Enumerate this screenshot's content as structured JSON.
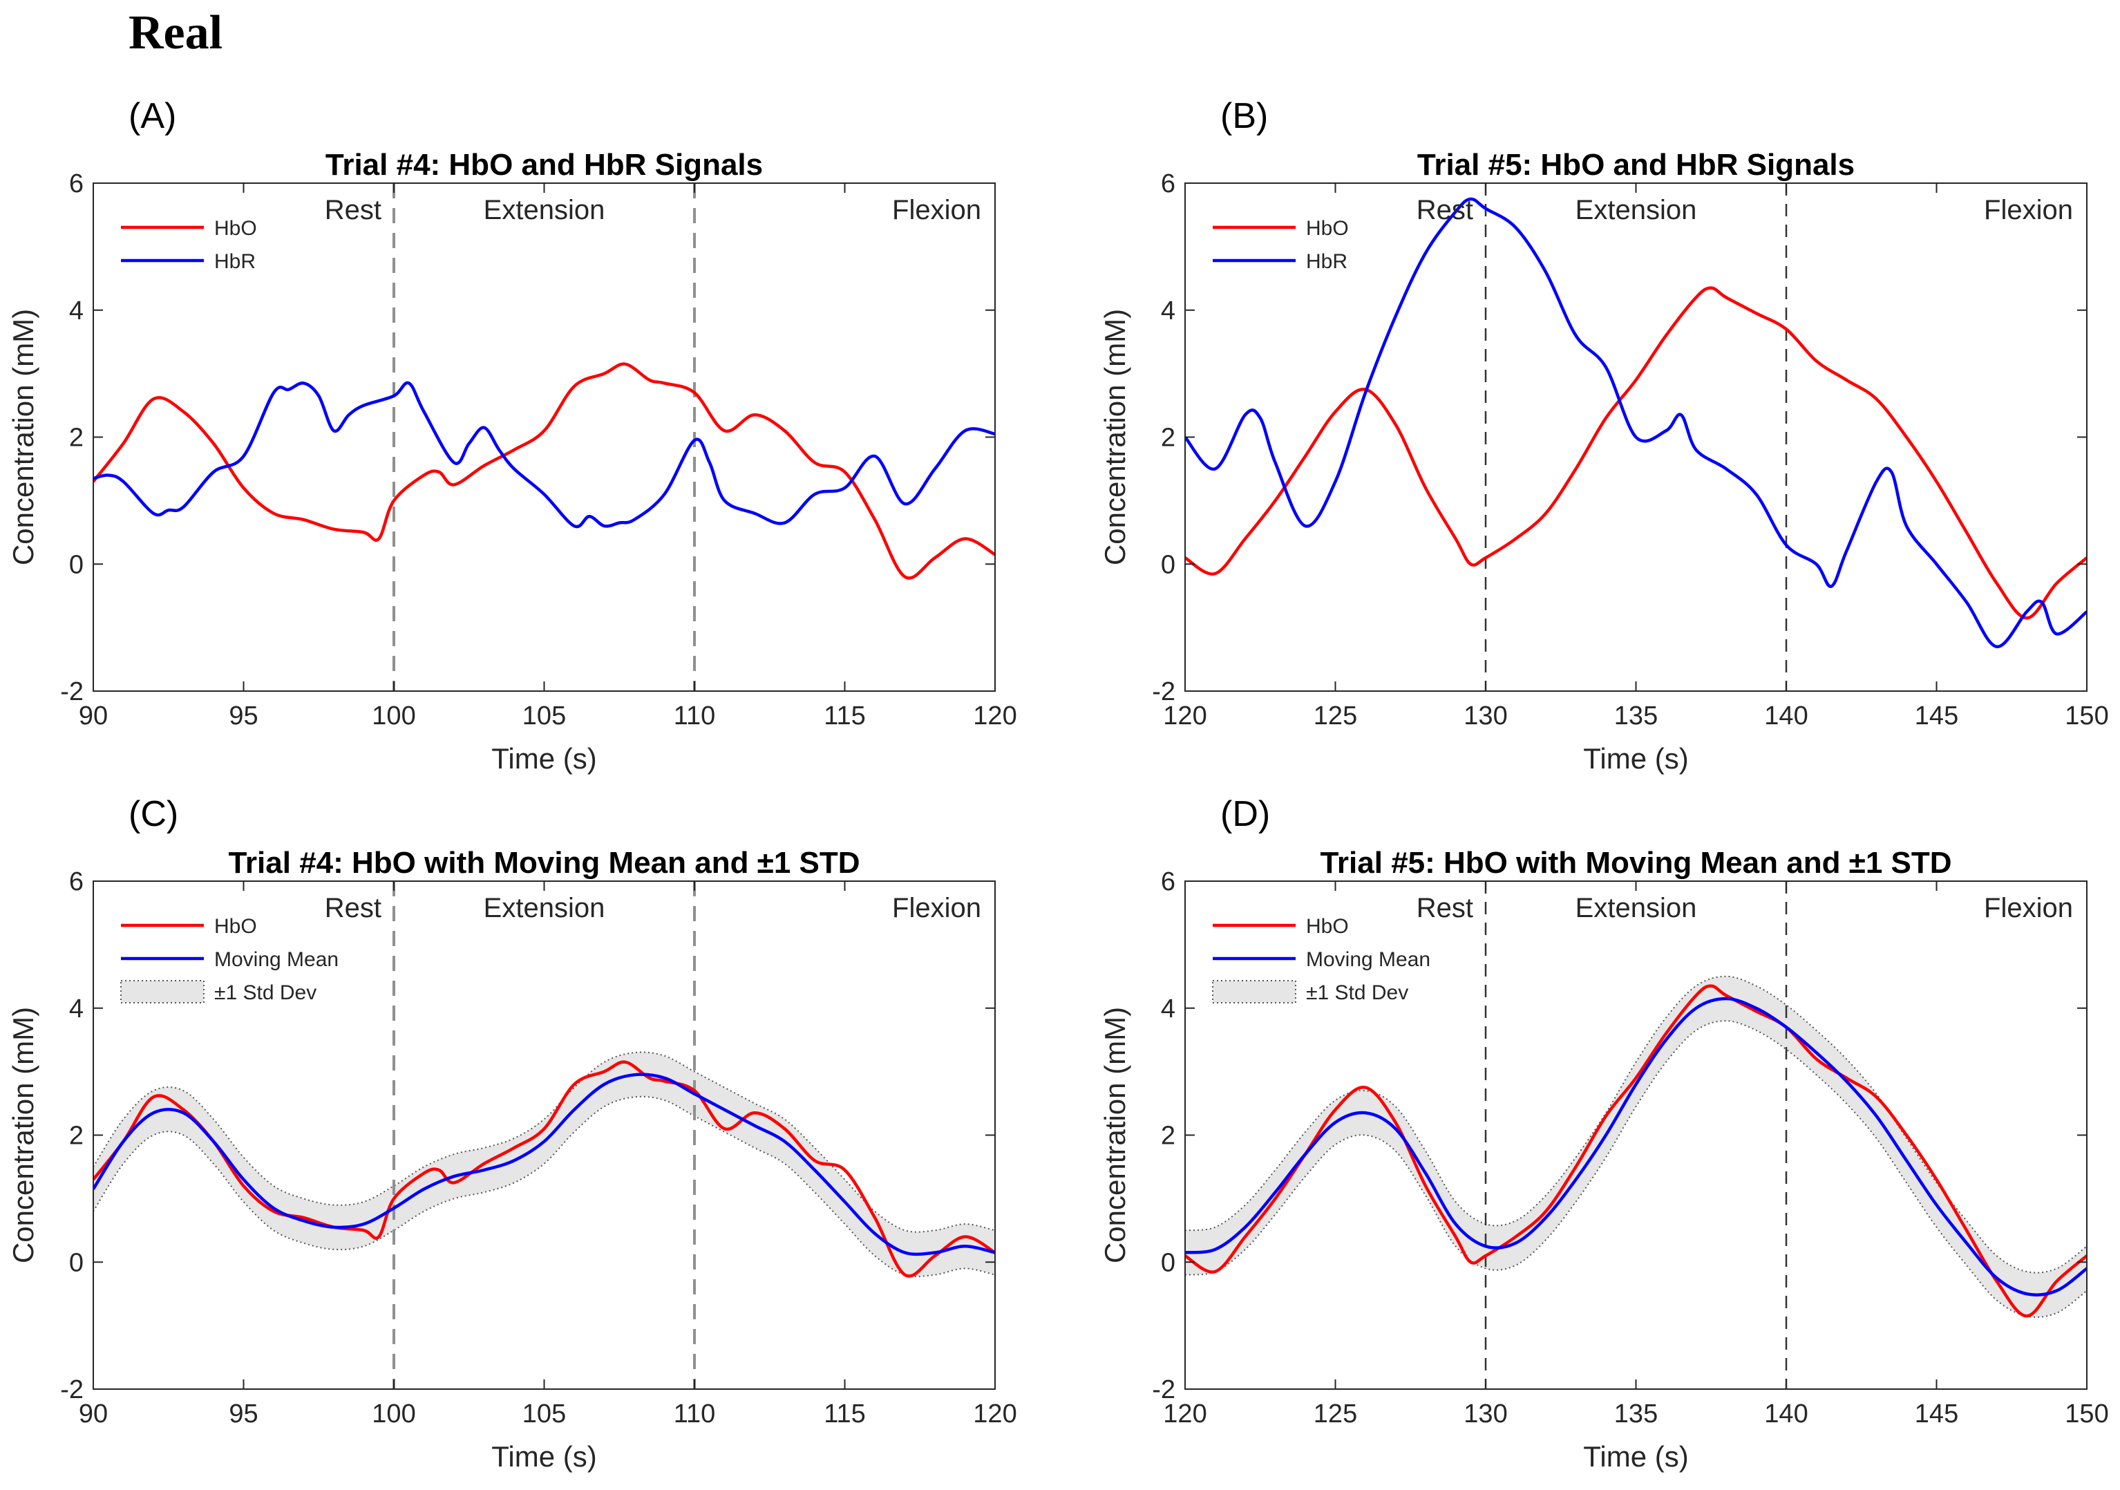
{
  "page": {
    "title": "Real"
  },
  "chart_data": [
    {
      "id": "panel-a",
      "panel_label": "(A)",
      "type": "line",
      "title": "Trial #4: HbO and HbR Signals",
      "xlabel": "Time (s)",
      "ylabel": "Concentration (mM)",
      "xlim": [
        90,
        120
      ],
      "ylim": [
        -2,
        6
      ],
      "xticks": [
        "90",
        "95",
        "100",
        "105",
        "110",
        "115",
        "120"
      ],
      "xtick_values": [
        90,
        95,
        100,
        105,
        110,
        115,
        120
      ],
      "yticks": [
        "-2",
        "0",
        "2",
        "4",
        "6"
      ],
      "ytick_values": [
        -2,
        0,
        2,
        4,
        6
      ],
      "vlines": [
        100,
        110
      ],
      "vline_style": "gray",
      "region_labels": [
        "Rest",
        "Extension",
        "Flexion"
      ],
      "legend": [
        "HbO",
        "HbR"
      ],
      "series": [
        {
          "name": "HbO",
          "color": "#ff0000",
          "x": [
            90,
            91,
            92,
            93,
            94,
            95,
            96,
            97,
            98,
            99,
            99.5,
            100,
            101,
            101.5,
            102,
            103,
            104,
            105,
            106,
            107,
            107.7,
            108.5,
            109,
            110,
            111,
            112,
            113,
            114,
            115,
            116,
            117,
            118,
            119,
            120
          ],
          "values": [
            1.3,
            1.9,
            2.6,
            2.4,
            1.9,
            1.2,
            0.8,
            0.7,
            0.55,
            0.5,
            0.4,
            1.0,
            1.4,
            1.45,
            1.25,
            1.55,
            1.8,
            2.1,
            2.8,
            3.0,
            3.15,
            2.9,
            2.85,
            2.7,
            2.1,
            2.35,
            2.1,
            1.6,
            1.45,
            0.7,
            -0.2,
            0.1,
            0.4,
            0.15
          ]
        },
        {
          "name": "HbR",
          "color": "#0000ff",
          "x": [
            90,
            90.5,
            91,
            92,
            92.5,
            93,
            94,
            95,
            96,
            96.5,
            97,
            97.5,
            98,
            98.5,
            99,
            100,
            100.5,
            101,
            102,
            102.5,
            103,
            103.5,
            104,
            105,
            106,
            106.5,
            107,
            107.5,
            108,
            109,
            110,
            110.5,
            111,
            112,
            113,
            114,
            115,
            116,
            117,
            118,
            119,
            120
          ],
          "values": [
            1.35,
            1.4,
            1.3,
            0.8,
            0.85,
            0.9,
            1.45,
            1.7,
            2.7,
            2.75,
            2.85,
            2.65,
            2.1,
            2.35,
            2.5,
            2.65,
            2.85,
            2.4,
            1.6,
            1.9,
            2.15,
            1.8,
            1.5,
            1.1,
            0.6,
            0.75,
            0.6,
            0.65,
            0.7,
            1.1,
            1.95,
            1.6,
            1.0,
            0.8,
            0.65,
            1.1,
            1.2,
            1.7,
            0.95,
            1.5,
            2.1,
            2.05
          ]
        }
      ]
    },
    {
      "id": "panel-b",
      "panel_label": "(B)",
      "type": "line",
      "title": "Trial #5: HbO and HbR Signals",
      "xlabel": "Time (s)",
      "ylabel": "Concentration (mM)",
      "xlim": [
        120,
        150
      ],
      "ylim": [
        -2,
        6
      ],
      "xticks": [
        "120",
        "125",
        "130",
        "135",
        "140",
        "145",
        "150"
      ],
      "xtick_values": [
        120,
        125,
        130,
        135,
        140,
        145,
        150
      ],
      "yticks": [
        "-2",
        "0",
        "2",
        "4",
        "6"
      ],
      "ytick_values": [
        -2,
        0,
        2,
        4,
        6
      ],
      "vlines": [
        130,
        140
      ],
      "vline_style": "black",
      "region_labels": [
        "Rest",
        "Extension",
        "Flexion"
      ],
      "legend": [
        "HbO",
        "HbR"
      ],
      "series": [
        {
          "name": "HbO",
          "color": "#ff0000",
          "x": [
            120,
            121,
            122,
            123,
            124,
            125,
            126,
            127,
            128,
            129,
            129.5,
            130,
            131,
            132,
            133,
            134,
            135,
            136,
            137,
            137.5,
            138,
            139,
            140,
            141,
            142,
            143,
            144,
            145,
            146,
            147,
            148,
            149,
            150
          ],
          "values": [
            0.1,
            -0.15,
            0.4,
            1.0,
            1.7,
            2.4,
            2.75,
            2.2,
            1.2,
            0.4,
            0.0,
            0.1,
            0.4,
            0.8,
            1.5,
            2.3,
            2.9,
            3.6,
            4.2,
            4.35,
            4.2,
            3.95,
            3.7,
            3.2,
            2.9,
            2.6,
            2.0,
            1.3,
            0.5,
            -0.3,
            -0.85,
            -0.3,
            0.1
          ]
        },
        {
          "name": "HbR",
          "color": "#0000ff",
          "x": [
            120,
            121,
            122,
            122.5,
            123,
            124,
            125,
            126,
            127,
            128,
            129,
            129.5,
            130,
            131,
            132,
            133,
            134,
            135,
            136,
            136.5,
            137,
            138,
            139,
            140,
            141,
            141.5,
            142,
            143,
            143.5,
            144,
            145,
            146,
            147,
            148,
            148.5,
            149,
            150
          ],
          "values": [
            2.0,
            1.5,
            2.35,
            2.3,
            1.6,
            0.6,
            1.3,
            2.7,
            3.9,
            4.9,
            5.55,
            5.75,
            5.6,
            5.3,
            4.6,
            3.6,
            3.1,
            2.0,
            2.1,
            2.35,
            1.8,
            1.5,
            1.1,
            0.3,
            0.0,
            -0.35,
            0.2,
            1.3,
            1.45,
            0.6,
            0.0,
            -0.6,
            -1.3,
            -0.75,
            -0.6,
            -1.1,
            -0.75
          ]
        }
      ]
    },
    {
      "id": "panel-c",
      "panel_label": "(C)",
      "type": "line",
      "title": "Trial #4: HbO with Moving Mean and ±1 STD",
      "xlabel": "Time (s)",
      "ylabel": "Concentration (mM)",
      "xlim": [
        90,
        120
      ],
      "ylim": [
        -2,
        6
      ],
      "xticks": [
        "90",
        "95",
        "100",
        "105",
        "110",
        "115",
        "120"
      ],
      "xtick_values": [
        90,
        95,
        100,
        105,
        110,
        115,
        120
      ],
      "yticks": [
        "-2",
        "0",
        "2",
        "4",
        "6"
      ],
      "ytick_values": [
        -2,
        0,
        2,
        4,
        6
      ],
      "vlines": [
        100,
        110
      ],
      "vline_style": "gray",
      "region_labels": [
        "Rest",
        "Extension",
        "Flexion"
      ],
      "legend": [
        "HbO",
        "Moving Mean",
        "±1 Std Dev"
      ],
      "std_band": 0.35,
      "series": [
        {
          "name": "HbO",
          "color": "#ff0000",
          "x": [
            90,
            91,
            92,
            93,
            94,
            95,
            96,
            97,
            98,
            99,
            99.5,
            100,
            101,
            101.5,
            102,
            103,
            104,
            105,
            106,
            107,
            107.7,
            108.5,
            109,
            110,
            111,
            112,
            113,
            114,
            115,
            116,
            117,
            118,
            119,
            120
          ],
          "values": [
            1.3,
            1.9,
            2.6,
            2.4,
            1.9,
            1.2,
            0.8,
            0.7,
            0.55,
            0.5,
            0.4,
            1.0,
            1.4,
            1.45,
            1.25,
            1.55,
            1.8,
            2.1,
            2.8,
            3.0,
            3.15,
            2.9,
            2.85,
            2.7,
            2.1,
            2.35,
            2.1,
            1.6,
            1.45,
            0.7,
            -0.2,
            0.1,
            0.4,
            0.15
          ]
        },
        {
          "name": "Moving Mean",
          "color": "#0000ff",
          "x": [
            90,
            91,
            92,
            93,
            94,
            95,
            96,
            97,
            98,
            99,
            100,
            101,
            102,
            103,
            104,
            105,
            106,
            107,
            108,
            109,
            110,
            111,
            112,
            113,
            114,
            115,
            116,
            117,
            118,
            119,
            120
          ],
          "values": [
            1.15,
            1.9,
            2.35,
            2.35,
            1.9,
            1.3,
            0.85,
            0.65,
            0.55,
            0.6,
            0.85,
            1.15,
            1.35,
            1.45,
            1.6,
            1.9,
            2.4,
            2.8,
            2.95,
            2.9,
            2.65,
            2.4,
            2.15,
            1.9,
            1.45,
            0.95,
            0.45,
            0.15,
            0.15,
            0.25,
            0.15
          ]
        }
      ]
    },
    {
      "id": "panel-d",
      "panel_label": "(D)",
      "type": "line",
      "title": "Trial #5: HbO with Moving Mean and ±1 STD",
      "xlabel": "Time (s)",
      "ylabel": "Concentration (mM)",
      "xlim": [
        120,
        150
      ],
      "ylim": [
        -2,
        6
      ],
      "xticks": [
        "120",
        "125",
        "130",
        "135",
        "140",
        "145",
        "150"
      ],
      "xtick_values": [
        120,
        125,
        130,
        135,
        140,
        145,
        150
      ],
      "yticks": [
        "-2",
        "0",
        "2",
        "4",
        "6"
      ],
      "ytick_values": [
        -2,
        0,
        2,
        4,
        6
      ],
      "vlines": [
        130,
        140
      ],
      "vline_style": "black",
      "region_labels": [
        "Rest",
        "Extension",
        "Flexion"
      ],
      "legend": [
        "HbO",
        "Moving Mean",
        "±1 Std Dev"
      ],
      "std_band": 0.35,
      "series": [
        {
          "name": "HbO",
          "color": "#ff0000",
          "x": [
            120,
            121,
            122,
            123,
            124,
            125,
            126,
            127,
            128,
            129,
            129.5,
            130,
            131,
            132,
            133,
            134,
            135,
            136,
            137,
            137.5,
            138,
            139,
            140,
            141,
            142,
            143,
            144,
            145,
            146,
            147,
            148,
            149,
            150
          ],
          "values": [
            0.1,
            -0.15,
            0.4,
            1.0,
            1.7,
            2.4,
            2.75,
            2.2,
            1.2,
            0.4,
            0.0,
            0.1,
            0.4,
            0.8,
            1.5,
            2.3,
            2.9,
            3.6,
            4.2,
            4.35,
            4.2,
            3.95,
            3.7,
            3.2,
            2.9,
            2.6,
            2.0,
            1.3,
            0.5,
            -0.3,
            -0.85,
            -0.3,
            0.1
          ]
        },
        {
          "name": "Moving Mean",
          "color": "#0000ff",
          "x": [
            120,
            121,
            122,
            123,
            124,
            125,
            126,
            127,
            128,
            129,
            130,
            131,
            132,
            133,
            134,
            135,
            136,
            137,
            138,
            139,
            140,
            141,
            142,
            143,
            144,
            145,
            146,
            147,
            148,
            149,
            150
          ],
          "values": [
            0.15,
            0.2,
            0.55,
            1.1,
            1.7,
            2.2,
            2.35,
            2.1,
            1.4,
            0.6,
            0.25,
            0.3,
            0.7,
            1.3,
            2.0,
            2.8,
            3.5,
            4.0,
            4.15,
            4.0,
            3.7,
            3.3,
            2.85,
            2.3,
            1.6,
            0.9,
            0.3,
            -0.25,
            -0.5,
            -0.45,
            -0.1
          ]
        }
      ]
    }
  ]
}
